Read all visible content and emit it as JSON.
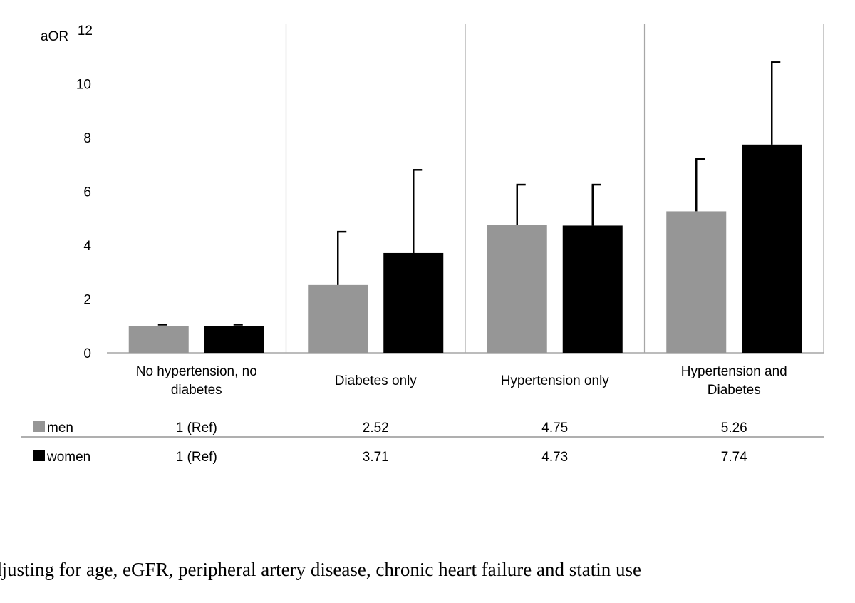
{
  "chart_data": {
    "type": "bar",
    "y_axis_label": "aOR",
    "ylim": [
      0,
      12
    ],
    "y_ticks": [
      0,
      2,
      4,
      6,
      8,
      10,
      12
    ],
    "categories": [
      [
        "No hypertension, no",
        "diabetes"
      ],
      [
        "Diabetes only"
      ],
      [
        "Hypertension only"
      ],
      [
        "Hypertension and",
        "Diabetes"
      ]
    ],
    "series": [
      {
        "name": "men",
        "color": "#969696",
        "values": [
          1,
          2.52,
          4.75,
          5.26
        ],
        "error_upper": [
          1,
          4.5,
          6.25,
          7.2
        ],
        "table_labels": [
          "1 (Ref)",
          "2.52",
          "4.75",
          "5.26"
        ]
      },
      {
        "name": "women",
        "color": "#000000",
        "values": [
          1,
          3.71,
          4.73,
          7.74
        ],
        "error_upper": [
          1,
          6.8,
          6.25,
          10.8
        ],
        "table_labels": [
          "1 (Ref)",
          "3.71",
          "4.73",
          "7.74"
        ]
      }
    ],
    "footnote": "*Adjusting for age, eGFR, peripheral artery disease, chronic heart failure and statin use"
  }
}
